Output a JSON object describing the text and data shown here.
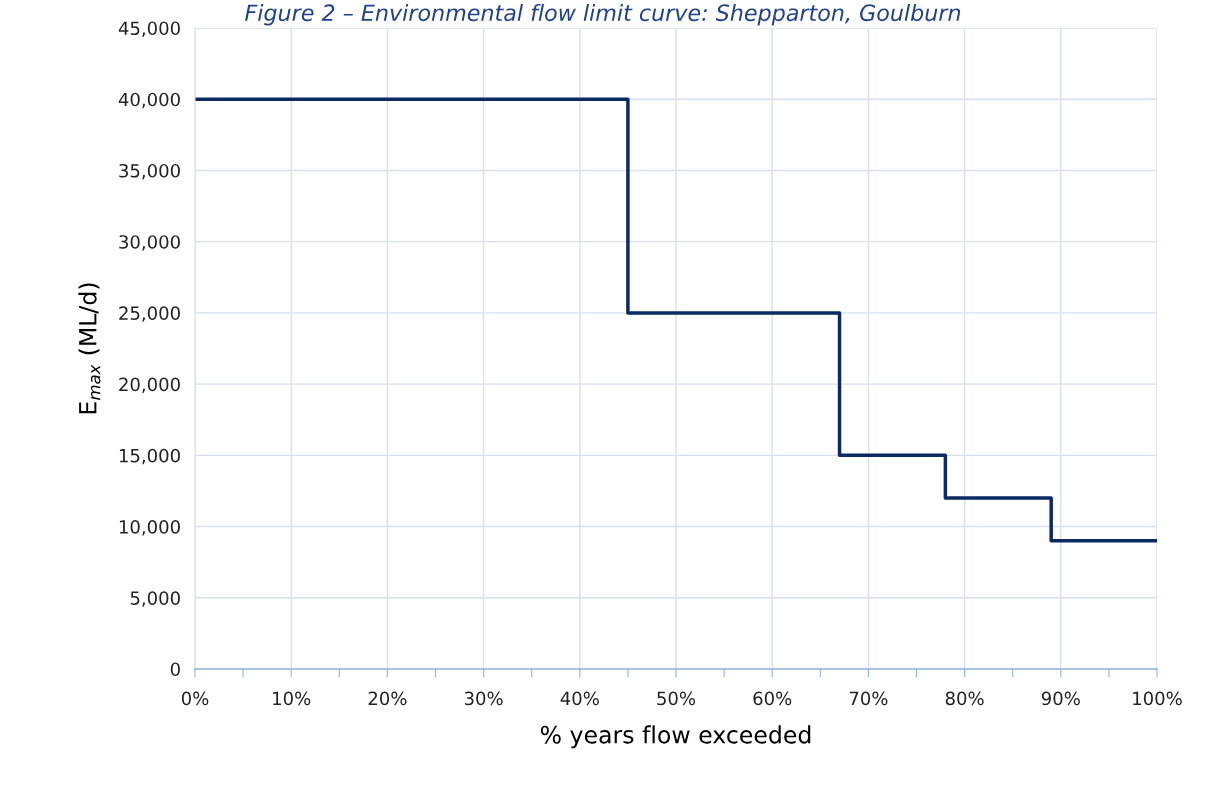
{
  "chart_data": {
    "type": "step",
    "title": "Figure 2 – Environmental flow limit curve: Shepparton, Goulburn",
    "xlabel": "% years flow exceeded",
    "ylabel": "E$_{max}$ (ML/d)",
    "x": [
      0,
      45,
      67,
      78,
      89,
      100
    ],
    "series": [
      {
        "color": "#0b2a63",
        "values": [
          40000,
          25000,
          15000,
          12000,
          9000,
          9000
        ]
      }
    ],
    "xlim": [
      0,
      100
    ],
    "xticks": [
      {
        "value": 0,
        "label": "0%"
      },
      {
        "value": 5,
        "label": null
      },
      {
        "value": 10,
        "label": "10%"
      },
      {
        "value": 15,
        "label": null
      },
      {
        "value": 20,
        "label": "20%"
      },
      {
        "value": 25,
        "label": null
      },
      {
        "value": 30,
        "label": "30%"
      },
      {
        "value": 35,
        "label": null
      },
      {
        "value": 40,
        "label": "40%"
      },
      {
        "value": 45,
        "label": null
      },
      {
        "value": 50,
        "label": "50%"
      },
      {
        "value": 55,
        "label": null
      },
      {
        "value": 60,
        "label": "60%"
      },
      {
        "value": 65,
        "label": null
      },
      {
        "value": 70,
        "label": "70%"
      },
      {
        "value": 75,
        "label": null
      },
      {
        "value": 80,
        "label": "80%"
      },
      {
        "value": 85,
        "label": null
      },
      {
        "value": 90,
        "label": "90%"
      },
      {
        "value": 95,
        "label": null
      },
      {
        "value": 100,
        "label": "100%"
      }
    ],
    "ylim": [
      0,
      45000
    ],
    "yticks": [
      0,
      {
        "value": 5000,
        "label": "5,000"
      },
      {
        "value": 10000,
        "label": "10,000"
      },
      {
        "value": 15000,
        "label": "15,000"
      },
      {
        "value": 20000,
        "label": "20,000"
      },
      {
        "value": 25000,
        "label": "25,000"
      },
      {
        "value": 30000,
        "label": "30,000"
      },
      {
        "value": 35000,
        "label": "35,000"
      },
      {
        "value": 40000,
        "label": "40,000"
      },
      {
        "value": 45000,
        "label": "45,000"
      }
    ],
    "grid": true,
    "marker": "none",
    "line_style": "solid"
  }
}
